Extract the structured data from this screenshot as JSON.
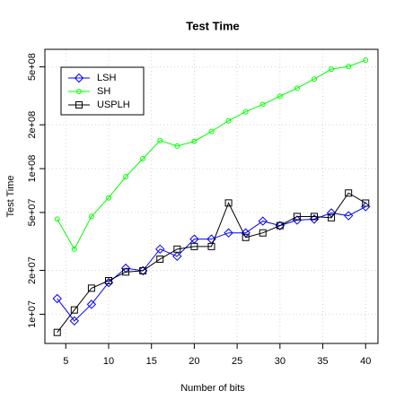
{
  "chart_data": {
    "type": "line",
    "title": "Test Time",
    "x_label": "Number of bits",
    "y_label": "Test Time",
    "x": [
      4,
      6,
      8,
      10,
      12,
      14,
      16,
      18,
      20,
      22,
      24,
      26,
      28,
      30,
      32,
      34,
      36,
      38,
      40
    ],
    "series": [
      {
        "name": "LSH",
        "color": "#0000ff",
        "values": [
          12800000,
          9000000,
          11700000,
          16500000,
          20700000,
          19900000,
          28000000,
          25000000,
          32800000,
          32800000,
          36200000,
          36200000,
          43600000,
          40600000,
          44300000,
          45000000,
          49600000,
          47500000,
          54800000
        ]
      },
      {
        "name": "SH",
        "color": "#00ff00",
        "values": [
          45000000,
          28000000,
          47000000,
          63000000,
          88000000,
          117000000,
          156000000,
          143000000,
          154000000,
          180000000,
          213000000,
          246000000,
          276000000,
          314000000,
          357000000,
          412000000,
          482000000,
          503000000,
          556000000
        ]
      },
      {
        "name": "USPLH",
        "color": "#000000",
        "values": [
          7500000,
          10700000,
          15100000,
          17000000,
          19500000,
          19900000,
          23900000,
          28000000,
          29200000,
          29200000,
          58100000,
          33700000,
          36200000,
          40600000,
          46900000,
          46900000,
          46000000,
          68000000,
          58000000
        ]
      }
    ],
    "xlim": [
      2.56,
      41.44
    ],
    "xticks": [
      5,
      10,
      15,
      20,
      25,
      30,
      35,
      40
    ],
    "ylim": [
      6300000,
      660000000
    ],
    "log_y": true,
    "yticks": [
      {
        "value": 10000000,
        "label": "1e+07"
      },
      {
        "value": 20000000,
        "label": "2e+07"
      },
      {
        "value": 50000000,
        "label": "5e+07"
      },
      {
        "value": 100000000,
        "label": "1e+08"
      },
      {
        "value": 200000000,
        "label": "2e+08"
      },
      {
        "value": 500000000,
        "label": "5e+08"
      }
    ],
    "grid": true,
    "legend_position": "top-left"
  }
}
